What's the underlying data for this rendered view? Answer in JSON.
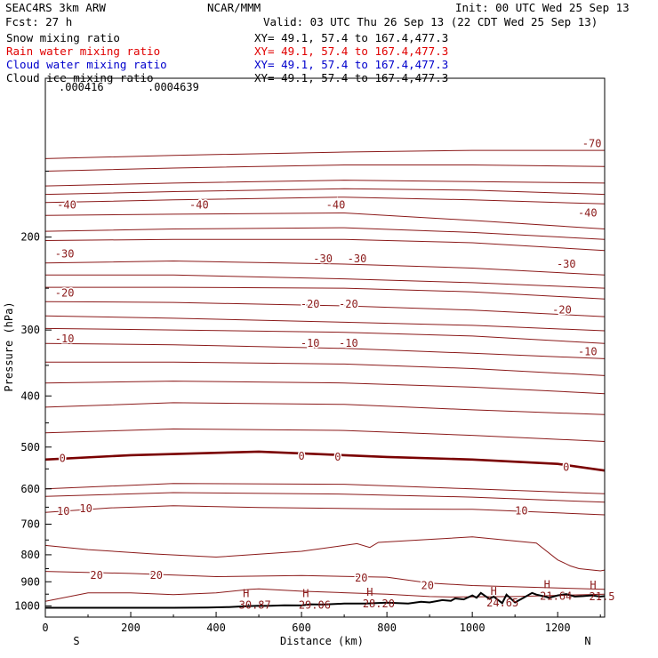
{
  "header": {
    "model": "SEAC4RS  3km ARW",
    "center": "NCAR/MMM",
    "init": "Init: 00 UTC Wed 25 Sep 13",
    "fcst": "Fcst:   27 h",
    "valid": "Valid: 03 UTC Thu 26 Sep 13 (22 CDT Wed 25 Sep 13)",
    "fields": [
      {
        "label": "Snow mixing ratio",
        "xy": "XY=  49.1, 57.4 to 167.4,477.3",
        "color": "#000000"
      },
      {
        "label": "Rain water mixing ratio",
        "xy": "XY=  49.1, 57.4 to 167.4,477.3",
        "color": "#e00000"
      },
      {
        "label": "Cloud water mixing ratio",
        "xy": "XY=  49.1, 57.4 to 167.4,477.3",
        "color": "#0000cc"
      },
      {
        "label": "Cloud ice mixing ratio",
        "xy": "XY=  49.1, 57.4 to 167.4,477.3",
        "color": "#000000"
      }
    ]
  },
  "colors": {
    "isotherm": "#8b1a1a",
    "zero": "#7a0000",
    "terrain": "#000000",
    "axis": "#000000"
  },
  "chart_data": {
    "type": "line",
    "title": "",
    "xlabel": "Distance (km)",
    "ylabel": "Pressure (hPa)",
    "xlim": [
      0,
      1310
    ],
    "ylim": [
      100,
      1050
    ],
    "y_log": true,
    "x_ticks": [
      0,
      200,
      400,
      600,
      800,
      1000,
      1200
    ],
    "y_ticks": [
      200,
      300,
      400,
      500,
      600,
      700,
      800,
      900,
      1000
    ],
    "x_end_labels": {
      "left": "S",
      "right": "N"
    },
    "top_small_labels": [
      ".000416",
      ".0004639"
    ],
    "isotherm_labels": [
      {
        "text": "-70",
        "x": 1280,
        "p": 133
      },
      {
        "text": "-40",
        "x": 50,
        "p": 174
      },
      {
        "text": "-40",
        "x": 360,
        "p": 174
      },
      {
        "text": "-40",
        "x": 680,
        "p": 174
      },
      {
        "text": "-40",
        "x": 1270,
        "p": 180
      },
      {
        "text": "-30",
        "x": 45,
        "p": 215
      },
      {
        "text": "-30",
        "x": 650,
        "p": 220
      },
      {
        "text": "-30",
        "x": 730,
        "p": 220
      },
      {
        "text": "-30",
        "x": 1220,
        "p": 225
      },
      {
        "text": "-20",
        "x": 45,
        "p": 255
      },
      {
        "text": "-20",
        "x": 620,
        "p": 268
      },
      {
        "text": "-20",
        "x": 710,
        "p": 268
      },
      {
        "text": "-20",
        "x": 1210,
        "p": 275
      },
      {
        "text": "-10",
        "x": 45,
        "p": 312
      },
      {
        "text": "-10",
        "x": 620,
        "p": 318
      },
      {
        "text": "-10",
        "x": 710,
        "p": 318
      },
      {
        "text": "-10",
        "x": 1270,
        "p": 330
      },
      {
        "text": "0",
        "x": 40,
        "p": 525
      },
      {
        "text": "0",
        "x": 600,
        "p": 520
      },
      {
        "text": "0",
        "x": 685,
        "p": 522
      },
      {
        "text": "0",
        "x": 1220,
        "p": 546
      },
      {
        "text": "10",
        "x": 42,
        "p": 662
      },
      {
        "text": "10",
        "x": 95,
        "p": 654
      },
      {
        "text": "10",
        "x": 1115,
        "p": 660
      },
      {
        "text": "20",
        "x": 120,
        "p": 875
      },
      {
        "text": "20",
        "x": 260,
        "p": 875
      },
      {
        "text": "20",
        "x": 740,
        "p": 885
      },
      {
        "text": "20",
        "x": 895,
        "p": 914
      }
    ],
    "high_labels": [
      {
        "x": 470,
        "p": 985,
        "value": "30.87"
      },
      {
        "x": 610,
        "p": 985,
        "value": "29.06"
      },
      {
        "x": 760,
        "p": 980,
        "value": "28.20"
      },
      {
        "x": 1050,
        "p": 975,
        "value": "24.65"
      },
      {
        "x": 1175,
        "p": 947,
        "value": "21.64"
      },
      {
        "x": 1283,
        "p": 950,
        "value": "21.5"
      }
    ],
    "isotherms": [
      {
        "name": "-70",
        "x": [
          0,
          300,
          700,
          1000,
          1310
        ],
        "p": [
          142,
          140,
          138,
          137,
          137
        ]
      },
      {
        "name": "-60",
        "x": [
          0,
          300,
          700,
          1000,
          1310
        ],
        "p": [
          150,
          148,
          146,
          146,
          147
        ]
      },
      {
        "name": "-55",
        "x": [
          0,
          300,
          700,
          1000,
          1310
        ],
        "p": [
          160,
          158,
          156,
          157,
          158
        ]
      },
      {
        "name": "-50",
        "x": [
          0,
          300,
          700,
          1000,
          1310
        ],
        "p": [
          166,
          164,
          162,
          163,
          166
        ]
      },
      {
        "name": "-45",
        "x": [
          0,
          300,
          700,
          1000,
          1310
        ],
        "p": [
          172,
          170,
          168,
          170,
          173
        ]
      },
      {
        "name": "-40",
        "x": [
          0,
          300,
          700,
          1000,
          1310
        ],
        "p": [
          182,
          181,
          180,
          186,
          193
        ]
      },
      {
        "name": "-38",
        "x": [
          0,
          300,
          700,
          1000,
          1310
        ],
        "p": [
          195,
          193,
          192,
          196,
          202
        ]
      },
      {
        "name": "-35",
        "x": [
          0,
          300,
          700,
          1000,
          1310
        ],
        "p": [
          203,
          202,
          202,
          205,
          212
        ]
      },
      {
        "name": "-30",
        "x": [
          0,
          300,
          700,
          1000,
          1310
        ],
        "p": [
          224,
          222,
          225,
          229,
          236
        ]
      },
      {
        "name": "-28",
        "x": [
          0,
          300,
          700,
          1000,
          1310
        ],
        "p": [
          236,
          236,
          240,
          244,
          250
        ]
      },
      {
        "name": "-25",
        "x": [
          0,
          300,
          700,
          1000,
          1310
        ],
        "p": [
          249,
          249,
          250,
          254,
          262
        ]
      },
      {
        "name": "-20",
        "x": [
          0,
          300,
          700,
          1000,
          1310
        ],
        "p": [
          265,
          266,
          270,
          275,
          283
        ]
      },
      {
        "name": "-18",
        "x": [
          0,
          300,
          700,
          1000,
          1310
        ],
        "p": [
          282,
          285,
          290,
          294,
          301
        ]
      },
      {
        "name": "-15",
        "x": [
          0,
          300,
          700,
          1000,
          1310
        ],
        "p": [
          298,
          300,
          303,
          308,
          318
        ]
      },
      {
        "name": "-10",
        "x": [
          0,
          300,
          700,
          1000,
          1310
        ],
        "p": [
          318,
          320,
          325,
          332,
          340
        ]
      },
      {
        "name": "-8",
        "x": [
          0,
          300,
          700,
          1000,
          1310
        ],
        "p": [
          345,
          345,
          348,
          355,
          366
        ]
      },
      {
        "name": "-5",
        "x": [
          0,
          300,
          700,
          1000,
          1310
        ],
        "p": [
          378,
          375,
          378,
          385,
          396
        ]
      },
      {
        "name": "-3",
        "x": [
          0,
          300,
          700,
          1000,
          1310
        ],
        "p": [
          420,
          412,
          415,
          425,
          434
        ]
      },
      {
        "name": "-1",
        "x": [
          0,
          300,
          700,
          1000,
          1310
        ],
        "p": [
          470,
          462,
          465,
          475,
          488
        ]
      },
      {
        "name": "0",
        "x": [
          0,
          200,
          500,
          800,
          1000,
          1200,
          1310
        ],
        "p": [
          528,
          518,
          510,
          522,
          528,
          538,
          554
        ]
      },
      {
        "name": "3",
        "x": [
          0,
          300,
          700,
          1000,
          1310
        ],
        "p": [
          600,
          586,
          588,
          600,
          613
        ]
      },
      {
        "name": "5",
        "x": [
          0,
          300,
          700,
          1000,
          1310
        ],
        "p": [
          620,
          610,
          614,
          622,
          636
        ]
      },
      {
        "name": "10",
        "x": [
          0,
          150,
          300,
          500,
          800,
          1000,
          1310
        ],
        "p": [
          665,
          652,
          646,
          651,
          655,
          656,
          672
        ]
      },
      {
        "name": "15",
        "x": [
          0,
          100,
          250,
          400,
          600,
          700,
          730,
          760,
          780,
          850,
          1000,
          1150,
          1200,
          1230,
          1250,
          1300,
          1310
        ],
        "p": [
          768,
          782,
          797,
          808,
          788,
          768,
          762,
          775,
          758,
          752,
          740,
          760,
          818,
          840,
          850,
          858,
          855
        ]
      },
      {
        "name": "20",
        "x": [
          0,
          200,
          400,
          600,
          800,
          900,
          1000,
          1200,
          1310
        ],
        "p": [
          860,
          868,
          880,
          876,
          882,
          905,
          915,
          925,
          930
        ]
      },
      {
        "name": "25",
        "x": [
          0,
          100,
          200,
          300,
          400,
          480,
          500,
          600,
          700,
          800,
          900,
          950,
          1100,
          1200,
          1310
        ],
        "p": [
          980,
          945,
          945,
          952,
          945,
          930,
          928,
          938,
          944,
          950,
          960,
          962,
          960,
          955,
          950
        ]
      }
    ],
    "terrain": {
      "name": "terrain",
      "x": [
        0,
        100,
        200,
        300,
        380,
        430,
        470,
        500,
        520,
        560,
        600,
        620,
        650,
        700,
        750,
        800,
        850,
        880,
        900,
        930,
        950,
        960,
        980,
        1000,
        1010,
        1020,
        1040,
        1050,
        1070,
        1080,
        1100,
        1120,
        1140,
        1150,
        1170,
        1180,
        1200,
        1220,
        1240,
        1260,
        1280,
        1300,
        1310
      ],
      "p": [
        1008,
        1008,
        1008,
        1008,
        1007,
        1005,
        1001,
        999,
        1000,
        997,
        998,
        993,
        994,
        990,
        990,
        986,
        990,
        982,
        985,
        975,
        978,
        968,
        972,
        955,
        965,
        945,
        970,
        960,
        988,
        952,
        985,
        965,
        945,
        952,
        960,
        965,
        955,
        950,
        960,
        958,
        955,
        960,
        958
      ]
    }
  }
}
